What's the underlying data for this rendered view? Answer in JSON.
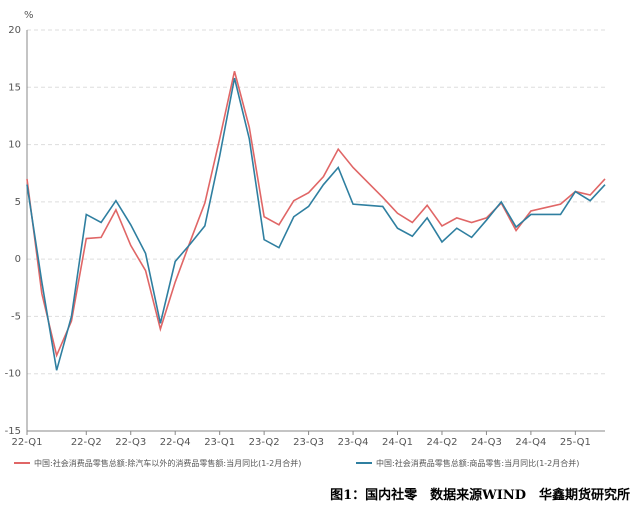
{
  "chart_data": {
    "type": "line",
    "y_label": "%",
    "categories": [
      "22-Q1",
      null,
      null,
      null,
      "22-Q2",
      null,
      null,
      "22-Q3",
      null,
      null,
      "22-Q4",
      null,
      null,
      "23-Q1",
      null,
      null,
      "23-Q2",
      null,
      null,
      "23-Q3",
      null,
      null,
      "23-Q4",
      null,
      null,
      "24-Q1",
      null,
      null,
      "24-Q2",
      null,
      null,
      "24-Q3",
      null,
      null,
      "24-Q4",
      null,
      null,
      "25-Q1",
      null,
      null
    ],
    "series": [
      {
        "name": "中国:社会消费品零售总额:除汽车以外的消费品零售额:当月同比(1-2月合并)",
        "color": "#e06666",
        "values": [
          7.0,
          -3.0,
          -8.4,
          -5.4,
          1.8,
          1.9,
          4.3,
          1.2,
          -1.0,
          -6.1,
          -2.0,
          1.5,
          4.9,
          10.5,
          16.4,
          11.5,
          3.7,
          3.0,
          5.1,
          5.8,
          7.2,
          9.6,
          8.0,
          6.7,
          5.4,
          4.0,
          3.2,
          4.7,
          2.9,
          3.6,
          3.2,
          3.6,
          4.9,
          2.5,
          4.2,
          4.5,
          4.8,
          5.9,
          5.6,
          7.0
        ]
      },
      {
        "name": "中国:社会消费品零售总额:商品零售:当月同比(1-2月合并)",
        "color": "#2f7fa0",
        "values": [
          6.5,
          -2.0,
          -9.7,
          -5.0,
          3.9,
          3.2,
          5.1,
          3.0,
          0.5,
          -5.6,
          -0.2,
          1.3,
          2.9,
          9.0,
          15.8,
          10.5,
          1.7,
          1.0,
          3.7,
          4.6,
          6.5,
          8.0,
          4.8,
          4.7,
          4.6,
          2.7,
          2.0,
          3.6,
          1.5,
          2.7,
          1.9,
          3.4,
          5.0,
          2.8,
          3.9,
          3.9,
          3.9,
          5.9,
          5.1,
          6.5
        ]
      }
    ],
    "ylim": [
      -15,
      20
    ],
    "yticks": [
      -15,
      -10,
      -5,
      0,
      5,
      10,
      15,
      20
    ],
    "grid": true,
    "caption": "图1：国内社零　数据来源WIND　华鑫期货研究所"
  }
}
